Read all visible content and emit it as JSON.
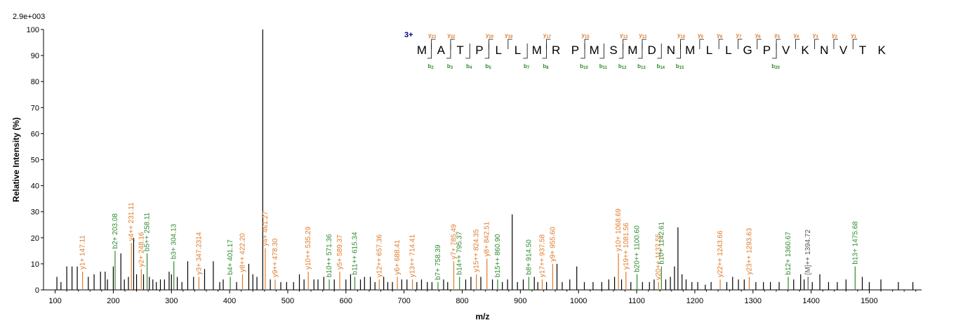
{
  "chart_data": {
    "type": "bar",
    "max_intensity_label": "2.9e+003",
    "xlabel": "m/z",
    "ylabel": "Relative   Intensity (%)",
    "xlim": [
      80,
      1590
    ],
    "ylim": [
      0,
      100
    ],
    "x_ticks": [
      100,
      200,
      300,
      400,
      500,
      600,
      700,
      800,
      900,
      1000,
      1100,
      1200,
      1300,
      1400,
      1500
    ],
    "y_ticks": [
      0,
      10,
      20,
      30,
      40,
      50,
      60,
      70,
      80,
      90,
      100
    ],
    "colors": {
      "y_ion": "#e07b2a",
      "b_ion": "#2e8b2e",
      "other": "#555555",
      "unannotated": "#000000",
      "charge": "#000080"
    },
    "annotated_peaks": [
      {
        "mz": 147.11,
        "i": 7,
        "label": "y1+ 147.11",
        "type": "y"
      },
      {
        "mz": 203.08,
        "i": 15,
        "label": "b2+ 203.08",
        "type": "b"
      },
      {
        "mz": 231.11,
        "i": 18,
        "label": "y4++ 231.11",
        "type": "y"
      },
      {
        "mz": 248.16,
        "i": 8,
        "label": "y2+ 248.16",
        "type": "y"
      },
      {
        "mz": 258.11,
        "i": 14,
        "label": "b5++ 258.11",
        "type": "b"
      },
      {
        "mz": 304.13,
        "i": 11,
        "label": "b3+ 304.13",
        "type": "b"
      },
      {
        "mz": 347.2314,
        "i": 5,
        "label": "y3+ 347.2314",
        "type": "y"
      },
      {
        "mz": 401.17,
        "i": 5,
        "label": "b4+ 401.17",
        "type": "b"
      },
      {
        "mz": 422.2,
        "i": 6,
        "label": "y8++ 422.20",
        "type": "y"
      },
      {
        "mz": 461.27,
        "i": 16,
        "label": "y4+ 461.27",
        "type": "y"
      },
      {
        "mz": 478.3,
        "i": 4,
        "label": "y9++ 478.30",
        "type": "y"
      },
      {
        "mz": 535.29,
        "i": 7,
        "label": "y10++ 535.29",
        "type": "y"
      },
      {
        "mz": 571.36,
        "i": 4,
        "label": "b10++ 571.36",
        "type": "b"
      },
      {
        "mz": 589.37,
        "i": 7,
        "label": "y5+ 589.37",
        "type": "y"
      },
      {
        "mz": 615.34,
        "i": 5,
        "label": "b11++ 615.34",
        "type": "b"
      },
      {
        "mz": 657.36,
        "i": 4,
        "label": "y12++ 657.36",
        "type": "y"
      },
      {
        "mz": 688.41,
        "i": 5,
        "label": "y6+ 688.41",
        "type": "y"
      },
      {
        "mz": 714.41,
        "i": 4,
        "label": "y13++ 714.41",
        "type": "y"
      },
      {
        "mz": 758.39,
        "i": 3,
        "label": "b7+ 758.39",
        "type": "b"
      },
      {
        "mz": 785.49,
        "i": 11,
        "label": "y7+ 785.49",
        "type": "y"
      },
      {
        "mz": 795.37,
        "i": 5,
        "label": "b14++ 795.37",
        "type": "b"
      },
      {
        "mz": 824.35,
        "i": 6,
        "label": "y15++ 824.35",
        "type": "y"
      },
      {
        "mz": 842.51,
        "i": 12,
        "label": "y8+ 842.51",
        "type": "y"
      },
      {
        "mz": 860.9,
        "i": 4,
        "label": "b15++ 860.90",
        "type": "b"
      },
      {
        "mz": 914.5,
        "i": 5,
        "label": "b8+ 914.50",
        "type": "b"
      },
      {
        "mz": 937.58,
        "i": 4,
        "label": "y17++ 937.58",
        "type": "y"
      },
      {
        "mz": 955.6,
        "i": 10,
        "label": "y9+ 955.60",
        "type": "y"
      },
      {
        "mz": 1068.69,
        "i": 14,
        "label": "y10+ 1068.69",
        "type": "y"
      },
      {
        "mz": 1081.56,
        "i": 7,
        "label": "y19++ 1081.56",
        "type": "y"
      },
      {
        "mz": 1100.6,
        "i": 6,
        "label": "b20++ 1100.60",
        "type": "b"
      },
      {
        "mz": 1137.55,
        "i": 3,
        "label": "y20++ 1137.55",
        "type": "y"
      },
      {
        "mz": 1142.61,
        "i": 9,
        "label": "b10+ 1142.61",
        "type": "b"
      },
      {
        "mz": 1243.66,
        "i": 4,
        "label": "y22++ 1243.66",
        "type": "y"
      },
      {
        "mz": 1293.63,
        "i": 5,
        "label": "y23++ 1293.63",
        "type": "y"
      },
      {
        "mz": 1360.67,
        "i": 5,
        "label": "b12+ 1360.67",
        "type": "b"
      },
      {
        "mz": 1394.72,
        "i": 5,
        "label": "[M]++ 1394.72",
        "type": "m"
      },
      {
        "mz": 1475.68,
        "i": 9,
        "label": "b13+ 1475.68",
        "type": "b"
      }
    ],
    "unannotated_peaks": [
      {
        "mz": 103,
        "i": 5
      },
      {
        "mz": 110,
        "i": 3
      },
      {
        "mz": 120,
        "i": 9
      },
      {
        "mz": 129,
        "i": 9
      },
      {
        "mz": 138,
        "i": 9
      },
      {
        "mz": 157,
        "i": 5
      },
      {
        "mz": 167,
        "i": 6
      },
      {
        "mz": 178,
        "i": 7
      },
      {
        "mz": 186,
        "i": 7
      },
      {
        "mz": 190,
        "i": 4
      },
      {
        "mz": 200,
        "i": 9
      },
      {
        "mz": 213,
        "i": 14
      },
      {
        "mz": 219,
        "i": 4
      },
      {
        "mz": 226,
        "i": 5
      },
      {
        "mz": 235,
        "i": 20
      },
      {
        "mz": 240,
        "i": 6
      },
      {
        "mz": 252,
        "i": 6
      },
      {
        "mz": 262,
        "i": 5
      },
      {
        "mz": 268,
        "i": 4
      },
      {
        "mz": 274,
        "i": 3
      },
      {
        "mz": 281,
        "i": 4
      },
      {
        "mz": 288,
        "i": 4
      },
      {
        "mz": 296,
        "i": 7
      },
      {
        "mz": 300,
        "i": 6
      },
      {
        "mz": 310,
        "i": 5
      },
      {
        "mz": 318,
        "i": 3
      },
      {
        "mz": 328,
        "i": 11
      },
      {
        "mz": 338,
        "i": 5
      },
      {
        "mz": 357,
        "i": 8
      },
      {
        "mz": 372,
        "i": 11
      },
      {
        "mz": 383,
        "i": 3
      },
      {
        "mz": 389,
        "i": 4
      },
      {
        "mz": 412,
        "i": 3
      },
      {
        "mz": 433,
        "i": 10
      },
      {
        "mz": 440,
        "i": 6
      },
      {
        "mz": 447,
        "i": 5
      },
      {
        "mz": 457,
        "i": 100
      },
      {
        "mz": 470,
        "i": 4
      },
      {
        "mz": 488,
        "i": 3
      },
      {
        "mz": 498,
        "i": 3
      },
      {
        "mz": 510,
        "i": 3
      },
      {
        "mz": 520,
        "i": 6
      },
      {
        "mz": 528,
        "i": 4
      },
      {
        "mz": 545,
        "i": 4
      },
      {
        "mz": 552,
        "i": 4
      },
      {
        "mz": 562,
        "i": 5
      },
      {
        "mz": 580,
        "i": 4
      },
      {
        "mz": 600,
        "i": 4
      },
      {
        "mz": 608,
        "i": 6
      },
      {
        "mz": 625,
        "i": 4
      },
      {
        "mz": 632,
        "i": 5
      },
      {
        "mz": 642,
        "i": 5
      },
      {
        "mz": 650,
        "i": 3
      },
      {
        "mz": 665,
        "i": 5
      },
      {
        "mz": 672,
        "i": 3
      },
      {
        "mz": 680,
        "i": 3
      },
      {
        "mz": 696,
        "i": 4
      },
      {
        "mz": 705,
        "i": 4
      },
      {
        "mz": 722,
        "i": 3
      },
      {
        "mz": 730,
        "i": 4
      },
      {
        "mz": 740,
        "i": 3
      },
      {
        "mz": 748,
        "i": 3
      },
      {
        "mz": 768,
        "i": 4
      },
      {
        "mz": 775,
        "i": 3
      },
      {
        "mz": 806,
        "i": 4
      },
      {
        "mz": 815,
        "i": 5
      },
      {
        "mz": 832,
        "i": 5
      },
      {
        "mz": 852,
        "i": 4
      },
      {
        "mz": 869,
        "i": 3
      },
      {
        "mz": 878,
        "i": 4
      },
      {
        "mz": 886,
        "i": 29
      },
      {
        "mz": 895,
        "i": 3
      },
      {
        "mz": 905,
        "i": 4
      },
      {
        "mz": 924,
        "i": 5
      },
      {
        "mz": 930,
        "i": 3
      },
      {
        "mz": 945,
        "i": 3
      },
      {
        "mz": 963,
        "i": 10
      },
      {
        "mz": 972,
        "i": 3
      },
      {
        "mz": 985,
        "i": 4
      },
      {
        "mz": 997,
        "i": 9
      },
      {
        "mz": 1010,
        "i": 3
      },
      {
        "mz": 1025,
        "i": 3
      },
      {
        "mz": 1040,
        "i": 3
      },
      {
        "mz": 1052,
        "i": 4
      },
      {
        "mz": 1062,
        "i": 5
      },
      {
        "mz": 1074,
        "i": 4
      },
      {
        "mz": 1090,
        "i": 3
      },
      {
        "mz": 1110,
        "i": 3
      },
      {
        "mz": 1122,
        "i": 3
      },
      {
        "mz": 1130,
        "i": 4
      },
      {
        "mz": 1150,
        "i": 4
      },
      {
        "mz": 1158,
        "i": 5
      },
      {
        "mz": 1165,
        "i": 9
      },
      {
        "mz": 1171,
        "i": 24
      },
      {
        "mz": 1178,
        "i": 6
      },
      {
        "mz": 1185,
        "i": 4
      },
      {
        "mz": 1195,
        "i": 3
      },
      {
        "mz": 1205,
        "i": 3
      },
      {
        "mz": 1218,
        "i": 2
      },
      {
        "mz": 1228,
        "i": 3
      },
      {
        "mz": 1255,
        "i": 3
      },
      {
        "mz": 1265,
        "i": 5
      },
      {
        "mz": 1275,
        "i": 4
      },
      {
        "mz": 1285,
        "i": 4
      },
      {
        "mz": 1305,
        "i": 3
      },
      {
        "mz": 1318,
        "i": 3
      },
      {
        "mz": 1330,
        "i": 3
      },
      {
        "mz": 1345,
        "i": 3
      },
      {
        "mz": 1370,
        "i": 4
      },
      {
        "mz": 1382,
        "i": 6
      },
      {
        "mz": 1388,
        "i": 4
      },
      {
        "mz": 1402,
        "i": 3
      },
      {
        "mz": 1415,
        "i": 6
      },
      {
        "mz": 1430,
        "i": 3
      },
      {
        "mz": 1445,
        "i": 3
      },
      {
        "mz": 1460,
        "i": 4
      },
      {
        "mz": 1488,
        "i": 5
      },
      {
        "mz": 1500,
        "i": 3
      },
      {
        "mz": 1520,
        "i": 4
      },
      {
        "mz": 1550,
        "i": 3
      },
      {
        "mz": 1575,
        "i": 3
      }
    ],
    "sequence": {
      "charge": "3+",
      "residues": [
        "M",
        "A",
        "T",
        "P",
        "L",
        "L",
        "M",
        "R",
        "P",
        "M",
        "S",
        "M",
        "D",
        "N",
        "M",
        "L",
        "L",
        "G",
        "P",
        "V",
        "K",
        "N",
        "V",
        "T",
        "K"
      ],
      "y_labels": [
        {
          "after": 1,
          "base": "y",
          "sub": "23"
        },
        {
          "after": 2,
          "base": "y",
          "sub": "22"
        },
        {
          "after": 4,
          "base": "y",
          "sub": "20"
        },
        {
          "after": 5,
          "base": "y",
          "sub": "19"
        },
        {
          "after": 7,
          "base": "y",
          "sub": "17"
        },
        {
          "after": 9,
          "base": "y",
          "sub": "15"
        },
        {
          "after": 11,
          "base": "y",
          "sub": "13"
        },
        {
          "after": 12,
          "base": "y",
          "sub": "12"
        },
        {
          "after": 14,
          "base": "y",
          "sub": "10"
        },
        {
          "after": 15,
          "base": "y",
          "sub": "9"
        },
        {
          "after": 16,
          "base": "y",
          "sub": "8"
        },
        {
          "after": 17,
          "base": "y",
          "sub": "7"
        },
        {
          "after": 18,
          "base": "y",
          "sub": "6"
        },
        {
          "after": 19,
          "base": "y",
          "sub": "5"
        },
        {
          "after": 20,
          "base": "y",
          "sub": "4"
        },
        {
          "after": 21,
          "base": "y",
          "sub": "3"
        },
        {
          "after": 22,
          "base": "y",
          "sub": "2"
        },
        {
          "after": 23,
          "base": "y",
          "sub": "1"
        }
      ],
      "b_labels": [
        {
          "after": 1,
          "base": "b",
          "sub": "2"
        },
        {
          "after": 2,
          "base": "b",
          "sub": "3"
        },
        {
          "after": 3,
          "base": "b",
          "sub": "4"
        },
        {
          "after": 4,
          "base": "b",
          "sub": "5"
        },
        {
          "after": 6,
          "base": "b",
          "sub": "7"
        },
        {
          "after": 7,
          "base": "b",
          "sub": "8"
        },
        {
          "after": 9,
          "base": "b",
          "sub": "10"
        },
        {
          "after": 10,
          "base": "b",
          "sub": "11"
        },
        {
          "after": 11,
          "base": "b",
          "sub": "12"
        },
        {
          "after": 12,
          "base": "b",
          "sub": "13"
        },
        {
          "after": 13,
          "base": "b",
          "sub": "14"
        },
        {
          "after": 14,
          "base": "b",
          "sub": "15"
        },
        {
          "after": 19,
          "base": "b",
          "sub": "20"
        }
      ]
    }
  }
}
